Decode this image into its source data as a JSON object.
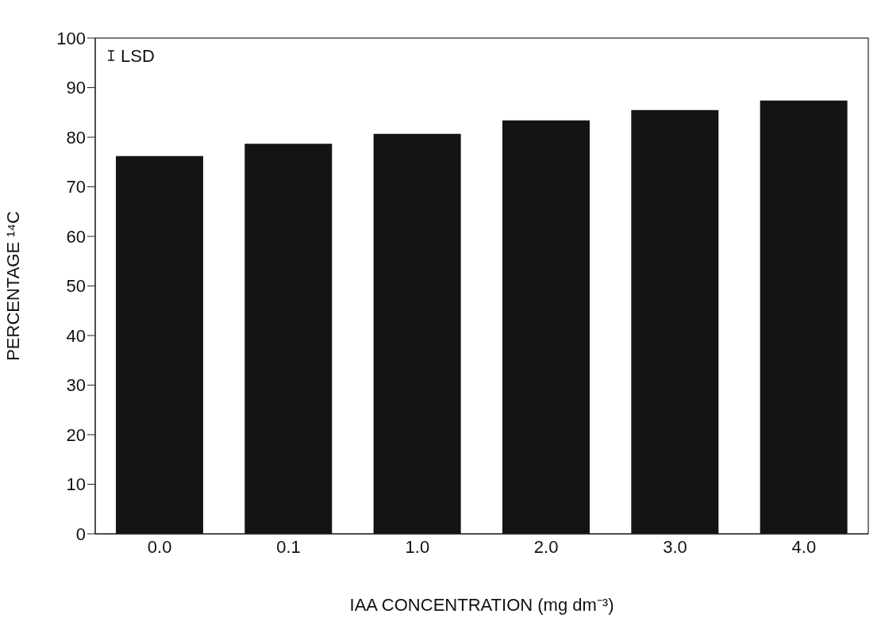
{
  "chart_data": {
    "type": "bar",
    "xlabel": "IAA CONCENTRATION (mg dm⁻³)",
    "ylabel": "PERCENTAGE ¹⁴C",
    "categories": [
      "0.0",
      "0.1",
      "1.0",
      "2.0",
      "3.0",
      "4.0"
    ],
    "values": [
      76.2,
      78.7,
      80.7,
      83.4,
      85.5,
      87.4
    ],
    "color": "#141414",
    "ylim": [
      0,
      100
    ],
    "yticks": [
      0,
      10,
      20,
      30,
      40,
      50,
      60,
      70,
      80,
      90,
      100
    ],
    "grid": false,
    "legend": false,
    "annotations": [
      "LSD"
    ]
  }
}
